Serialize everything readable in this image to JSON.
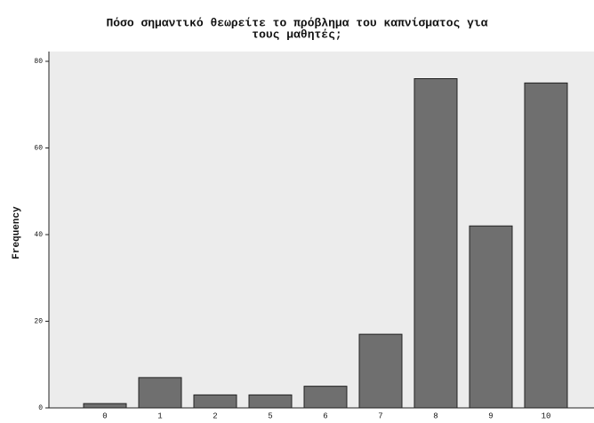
{
  "chart_data": {
    "type": "bar",
    "title": "Πόσο σημαντικό θεωρείτε το πρόβλημα του καπνίσματος για τους μαθητές;",
    "title_lines": [
      "Πόσο σημαντικό θεωρείτε το πρόβλημα του καπνίσματος για",
      "τους μαθητές;"
    ],
    "y_label": "Frequency",
    "categories": [
      "0",
      "1",
      "2",
      "5",
      "6",
      "7",
      "8",
      "9",
      "10"
    ],
    "values": [
      1,
      7,
      3,
      3,
      5,
      17,
      76,
      42,
      75
    ],
    "color": "#6f6f6f",
    "ylim": [
      0,
      80
    ],
    "yticks": [
      0,
      20,
      40,
      60,
      80
    ]
  }
}
